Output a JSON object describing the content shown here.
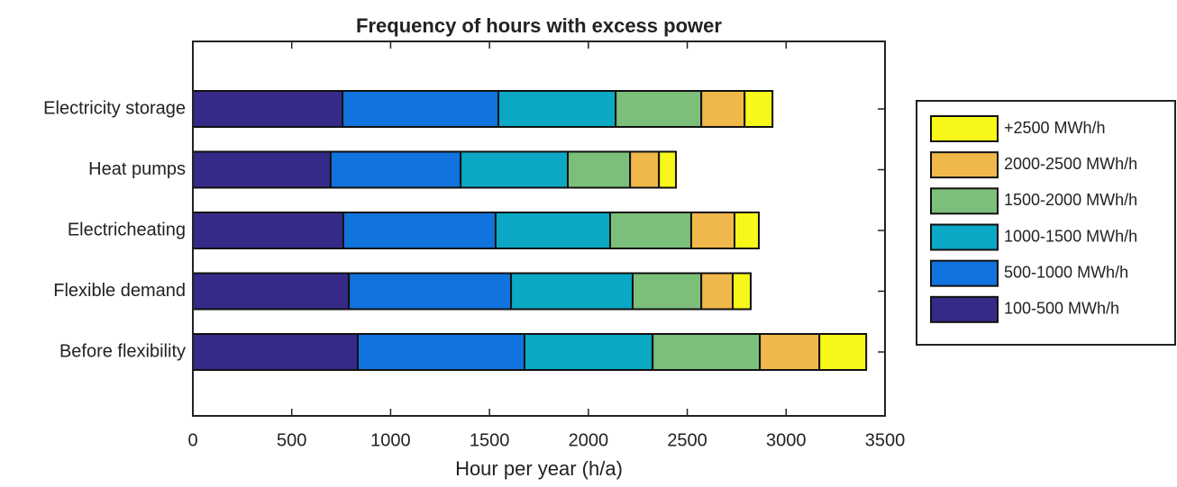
{
  "chart_data": {
    "type": "stacked-barh",
    "title": "Frequency of hours with excess power",
    "x_label": "Hour per year (h/a)",
    "categories": [
      "Electricity storage",
      "Heat pumps",
      "Electricheating",
      "Flexible demand",
      "Before flexibility"
    ],
    "series": [
      {
        "name": "100-500 MWh/h",
        "color": "#352a87",
        "values": [
          757,
          697,
          761,
          789,
          834
        ]
      },
      {
        "name": "500-1000 MWh/h",
        "color": "#1173dd",
        "values": [
          788,
          657,
          770,
          820,
          843
        ]
      },
      {
        "name": "1000-1500 MWh/h",
        "color": "#0aa8c4",
        "values": [
          593,
          542,
          579,
          615,
          648
        ]
      },
      {
        "name": "1500-2000 MWh/h",
        "color": "#7cbf7b",
        "values": [
          433,
          315,
          410,
          347,
          542
        ]
      },
      {
        "name": "2000-2500 MWh/h",
        "color": "#f0b84a",
        "values": [
          219,
          146,
          219,
          159,
          301
        ]
      },
      {
        "name": "+2500 MWh/h",
        "color": "#f7f71a",
        "values": [
          141,
          86,
          123,
          91,
          237
        ]
      }
    ],
    "xlim": [
      0,
      3500
    ],
    "xticks": [
      0,
      500,
      1000,
      1500,
      2000,
      2500,
      3000,
      3500
    ],
    "legend": "outside-right"
  }
}
